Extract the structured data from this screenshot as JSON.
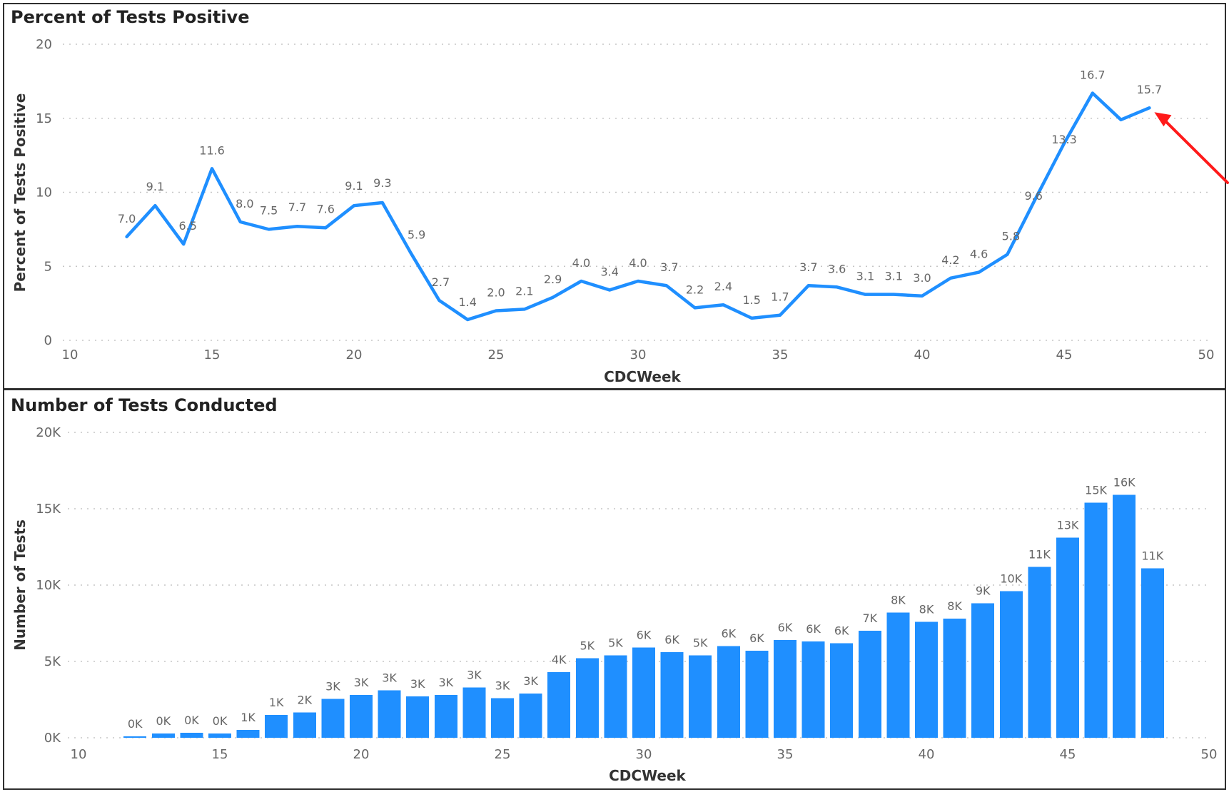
{
  "colors": {
    "series": "#1f8fff",
    "annotation_arrow": "#ff1a1a",
    "frame": "#2f2f2f",
    "grid": "#bfbfbf",
    "text": "#222222",
    "muted_text": "#666666"
  },
  "chart_data": [
    {
      "type": "line",
      "title": "Percent of Tests Positive",
      "xlabel": "CDCWeek",
      "ylabel": "Percent of Tests Positive",
      "xlim": [
        10,
        50
      ],
      "ylim": [
        0,
        20
      ],
      "x_ticks": [
        10,
        15,
        20,
        25,
        30,
        35,
        40,
        45,
        50
      ],
      "x_tick_labels": [
        "10",
        "15",
        "20",
        "25",
        "30",
        "35",
        "40",
        "45",
        "50"
      ],
      "y_ticks": [
        0,
        5,
        10,
        15,
        20
      ],
      "y_tick_labels": [
        "0",
        "5",
        "10",
        "15",
        "20"
      ],
      "grid": "horizontal dotted",
      "legend": "none",
      "x": [
        12,
        13,
        14,
        15,
        16,
        17,
        18,
        19,
        20,
        21,
        22,
        23,
        24,
        25,
        26,
        27,
        28,
        29,
        30,
        31,
        32,
        33,
        34,
        35,
        36,
        37,
        38,
        39,
        40,
        41,
        42,
        43,
        44,
        45,
        46,
        47,
        48
      ],
      "values": [
        7.0,
        9.1,
        6.5,
        11.6,
        8.0,
        7.5,
        7.7,
        7.6,
        9.1,
        9.3,
        5.9,
        2.7,
        1.4,
        2.0,
        2.1,
        2.9,
        4.0,
        3.4,
        4.0,
        3.7,
        2.2,
        2.4,
        1.5,
        1.7,
        3.7,
        3.6,
        3.1,
        3.1,
        3.0,
        4.2,
        4.6,
        5.8,
        9.6,
        13.3,
        16.7,
        14.9,
        15.7
      ],
      "data_labels": [
        "7.0",
        "9.1",
        "6.5",
        "11.6",
        "8.0",
        "7.5",
        "7.7",
        "7.6",
        "9.1",
        "9.3",
        "5.9",
        "2.7",
        "1.4",
        "2.0",
        "2.1",
        "2.9",
        "4.0",
        "3.4",
        "4.0",
        "3.7",
        "2.2",
        "2.4",
        "1.5",
        "1.7",
        "3.7",
        "3.6",
        "3.1",
        "3.1",
        "3.0",
        "4.2",
        "4.6",
        "5.8",
        "9.6",
        "13.3",
        "16.7",
        "",
        "15.7"
      ],
      "annotation": {
        "type": "arrow",
        "target_week": 48,
        "target_value": 15.7,
        "color": "#ff1a1a"
      }
    },
    {
      "type": "bar",
      "title": "Number of Tests Conducted",
      "xlabel": "CDCWeek",
      "ylabel": "Number of Tests",
      "xlim": [
        10,
        50
      ],
      "ylim": [
        0,
        20000
      ],
      "x_ticks": [
        10,
        15,
        20,
        25,
        30,
        35,
        40,
        45,
        50
      ],
      "x_tick_labels": [
        "10",
        "15",
        "20",
        "25",
        "30",
        "35",
        "40",
        "45",
        "50"
      ],
      "y_ticks": [
        0,
        5000,
        10000,
        15000,
        20000
      ],
      "y_tick_labels": [
        "0K",
        "5K",
        "10K",
        "15K",
        "20K"
      ],
      "grid": "horizontal dotted",
      "legend": "none",
      "x": [
        12,
        13,
        14,
        15,
        16,
        17,
        18,
        19,
        20,
        21,
        22,
        23,
        24,
        25,
        26,
        27,
        28,
        29,
        30,
        31,
        32,
        33,
        34,
        35,
        36,
        37,
        38,
        39,
        40,
        41,
        42,
        43,
        44,
        45,
        46,
        47,
        48
      ],
      "values": [
        90,
        280,
        320,
        290,
        520,
        1500,
        1650,
        2550,
        2800,
        3100,
        2700,
        2800,
        3300,
        2600,
        2900,
        4300,
        5200,
        5400,
        5900,
        5600,
        5400,
        6000,
        5700,
        6400,
        6300,
        6200,
        7000,
        8200,
        7600,
        7800,
        8800,
        9600,
        11200,
        13100,
        15400,
        15900,
        11100
      ],
      "data_labels": [
        "0K",
        "0K",
        "0K",
        "0K",
        "1K",
        "1K",
        "2K",
        "3K",
        "3K",
        "3K",
        "3K",
        "3K",
        "3K",
        "3K",
        "3K",
        "4K",
        "5K",
        "5K",
        "6K",
        "6K",
        "5K",
        "6K",
        "6K",
        "6K",
        "6K",
        "6K",
        "7K",
        "8K",
        "8K",
        "8K",
        "9K",
        "10K",
        "11K",
        "13K",
        "15K",
        "16K",
        "11K"
      ]
    }
  ]
}
